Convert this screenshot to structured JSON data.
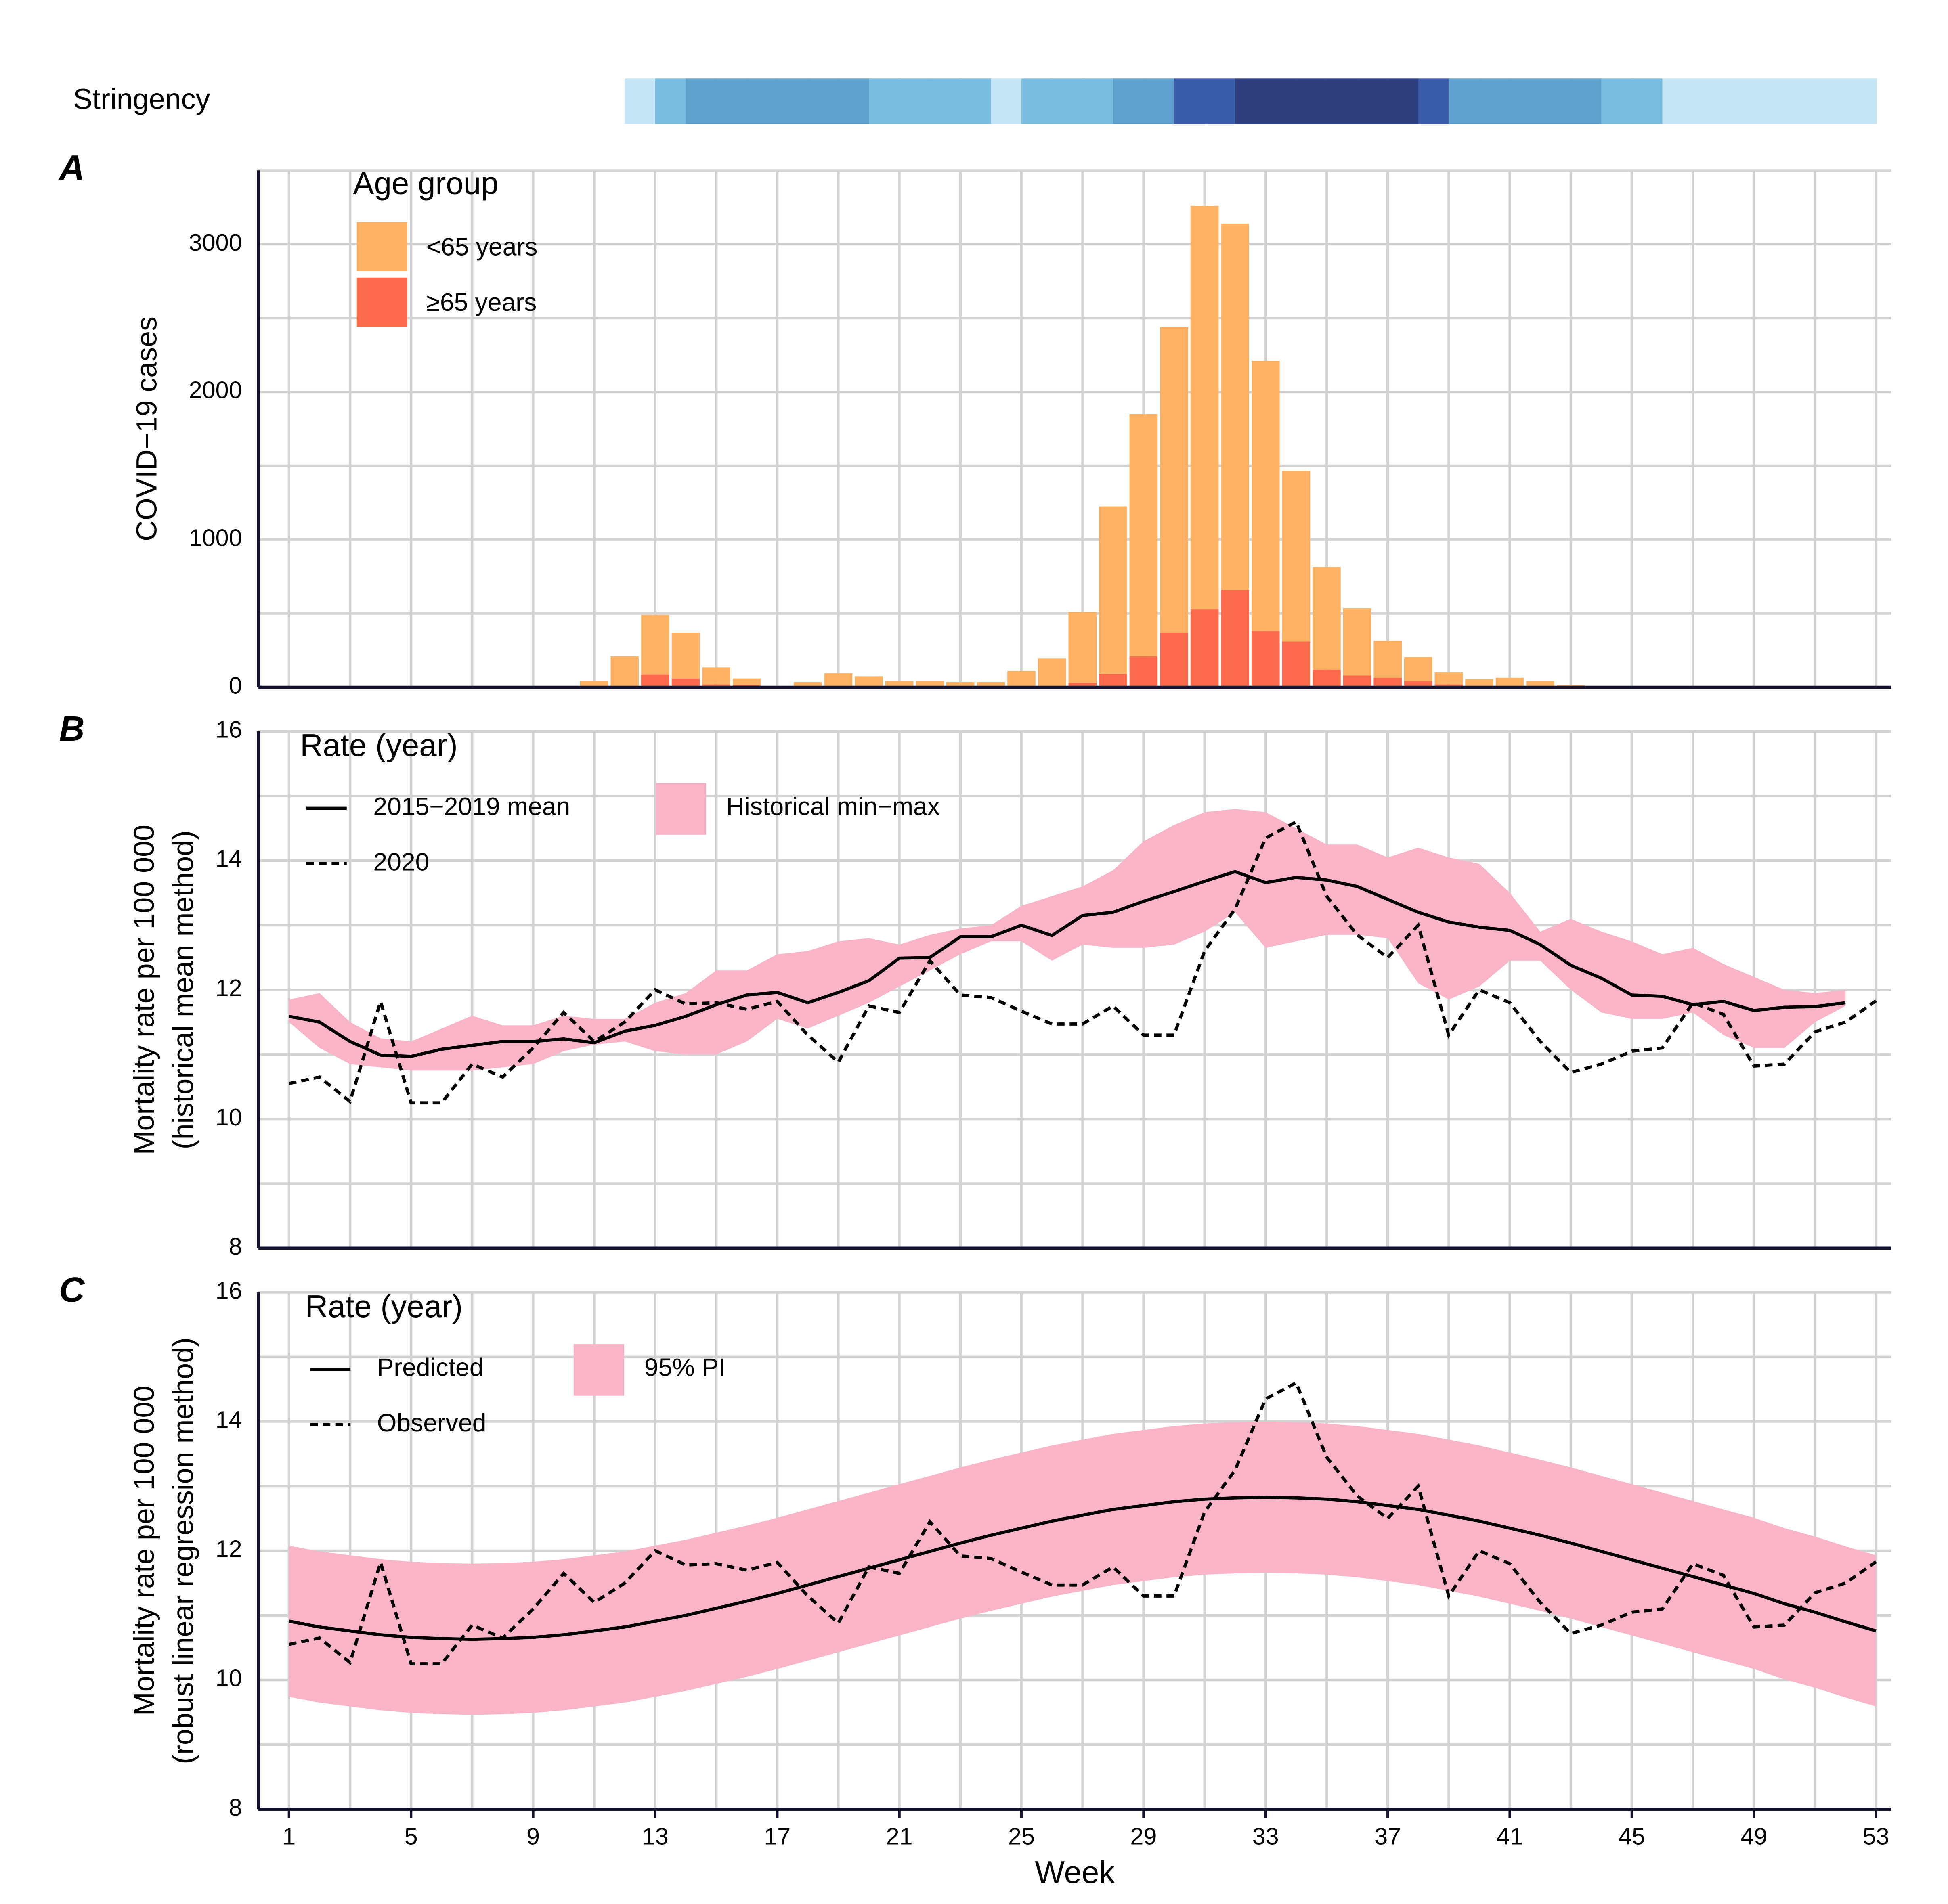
{
  "chart_data": [
    {
      "type": "strip",
      "label": "Stringency",
      "x": [
        12,
        13,
        14,
        15,
        16,
        17,
        18,
        19,
        20,
        21,
        22,
        23,
        24,
        25,
        26,
        27,
        28,
        29,
        30,
        31,
        32,
        33,
        34,
        35,
        36,
        37,
        38,
        39,
        40,
        41,
        42,
        43,
        44,
        45,
        46,
        47,
        48,
        49,
        50,
        51,
        52
      ],
      "colors": [
        "#c3e5f6",
        "#7bbde0",
        "#5fa1cc",
        "#5fa1cc",
        "#5fa1cc",
        "#5fa1cc",
        "#5fa1cc",
        "#5fa1cc",
        "#7bbde0",
        "#7bbde0",
        "#7bbde0",
        "#7bbde0",
        "#c3e5f6",
        "#7bbde0",
        "#7bbde0",
        "#7bbde0",
        "#5fa1cc",
        "#5fa1cc",
        "#3b5ca8",
        "#3b5ca8",
        "#2c3e7d",
        "#2c3e7d",
        "#2c3e7d",
        "#2c3e7d",
        "#2c3e7d",
        "#2c3e7d",
        "#3b5ca8",
        "#5fa1cc",
        "#5fa1cc",
        "#5fa1cc",
        "#5fa1cc",
        "#5fa1cc",
        "#7bbde0",
        "#7bbde0",
        "#c3e5f6",
        "#c3e5f6",
        "#c3e5f6",
        "#c3e5f6",
        "#c3e5f6",
        "#c3e5f6",
        "#c3e5f6"
      ],
      "xlim": [
        0,
        53.5
      ]
    },
    {
      "type": "stacked-bar",
      "panel": "A",
      "ylabel": "COVID−19 cases",
      "legend_title": "Age group",
      "x": [
        1,
        2,
        3,
        4,
        5,
        6,
        7,
        8,
        9,
        10,
        11,
        12,
        13,
        14,
        15,
        16,
        17,
        18,
        19,
        20,
        21,
        22,
        23,
        24,
        25,
        26,
        27,
        28,
        29,
        30,
        31,
        32,
        33,
        34,
        35,
        36,
        37,
        38,
        39,
        40,
        41,
        42,
        43,
        44,
        45,
        46,
        47,
        48,
        49,
        50,
        51,
        52,
        53
      ],
      "series": [
        {
          "name": "<65 years",
          "color": "#fdb163",
          "values": [
            0,
            0,
            0,
            0,
            0,
            0,
            0,
            0,
            0,
            0,
            40,
            200,
            405,
            310,
            115,
            45,
            10,
            35,
            90,
            70,
            40,
            40,
            35,
            35,
            105,
            190,
            480,
            1135,
            1640,
            2070,
            2730,
            2480,
            1830,
            1155,
            695,
            455,
            250,
            165,
            80,
            50,
            60,
            40,
            15,
            5,
            0,
            0,
            0,
            0,
            0,
            0,
            0,
            0,
            0
          ]
        },
        {
          "name": "≥65 years",
          "color": "#fb6b4b",
          "values": [
            0,
            0,
            0,
            0,
            0,
            0,
            0,
            0,
            0,
            0,
            0,
            10,
            85,
            60,
            20,
            15,
            0,
            0,
            5,
            5,
            0,
            0,
            0,
            0,
            5,
            5,
            30,
            90,
            210,
            370,
            530,
            660,
            380,
            310,
            120,
            80,
            65,
            40,
            20,
            5,
            5,
            0,
            0,
            0,
            0,
            0,
            0,
            0,
            0,
            0,
            0,
            0,
            0
          ]
        }
      ],
      "xlim": [
        0,
        53.5
      ],
      "ylim": [
        0,
        3500
      ],
      "yticks": [
        0,
        1000,
        2000,
        3000
      ],
      "grid": true
    },
    {
      "type": "line-band",
      "panel": "B",
      "ylabel": [
        "Mortality rate per 100 000",
        "(historical mean method)"
      ],
      "legend_title": "Rate (year)",
      "x": [
        1,
        2,
        3,
        4,
        5,
        6,
        7,
        8,
        9,
        10,
        11,
        12,
        13,
        14,
        15,
        16,
        17,
        18,
        19,
        20,
        21,
        22,
        23,
        24,
        25,
        26,
        27,
        28,
        29,
        30,
        31,
        32,
        33,
        34,
        35,
        36,
        37,
        38,
        39,
        40,
        41,
        42,
        43,
        44,
        45,
        46,
        47,
        48,
        49,
        50,
        51,
        52,
        53
      ],
      "band": {
        "name": "Historical min−max",
        "color": "#f9b4c7",
        "lower": [
          11.5,
          11.1,
          10.85,
          10.8,
          10.75,
          10.75,
          10.75,
          10.8,
          10.85,
          11.05,
          11.15,
          11.2,
          11.05,
          11.0,
          11.0,
          11.2,
          11.55,
          11.4,
          11.6,
          11.8,
          12.05,
          12.3,
          12.55,
          12.75,
          12.75,
          12.45,
          12.7,
          12.65,
          12.65,
          12.7,
          12.9,
          13.2,
          12.65,
          12.75,
          12.85,
          12.85,
          12.8,
          12.1,
          11.85,
          12.05,
          12.45,
          12.45,
          12.0,
          11.65,
          11.55,
          11.55,
          11.65,
          11.3,
          11.1,
          11.1,
          11.5,
          11.75,
          null
        ],
        "upper": [
          11.85,
          11.95,
          11.5,
          11.25,
          11.2,
          11.4,
          11.6,
          11.45,
          11.45,
          11.6,
          11.55,
          11.55,
          11.8,
          11.95,
          12.3,
          12.3,
          12.55,
          12.6,
          12.75,
          12.8,
          12.7,
          12.85,
          12.95,
          13.0,
          13.3,
          13.45,
          13.6,
          13.85,
          14.3,
          14.55,
          14.75,
          14.8,
          14.75,
          14.5,
          14.25,
          14.25,
          14.05,
          14.2,
          14.05,
          13.95,
          13.5,
          12.9,
          13.1,
          12.9,
          12.75,
          12.55,
          12.65,
          12.4,
          12.2,
          12.0,
          11.95,
          12.0,
          null
        ]
      },
      "series": [
        {
          "name": "2015−2019 mean",
          "color": "#000000",
          "dash": false,
          "values": [
            11.59,
            11.5,
            11.2,
            10.99,
            10.97,
            11.08,
            11.14,
            11.2,
            11.2,
            11.24,
            11.18,
            11.36,
            11.45,
            11.59,
            11.77,
            11.92,
            11.96,
            11.8,
            11.96,
            12.14,
            12.49,
            12.5,
            12.82,
            12.82,
            13.0,
            12.84,
            13.15,
            13.2,
            13.37,
            13.52,
            13.68,
            13.83,
            13.66,
            13.74,
            13.7,
            13.6,
            13.4,
            13.2,
            13.05,
            12.97,
            12.92,
            12.7,
            12.38,
            12.18,
            11.92,
            11.9,
            11.77,
            11.82,
            11.68,
            11.73,
            11.74,
            11.8,
            null
          ]
        },
        {
          "name": "2020",
          "color": "#000000",
          "dash": true,
          "values": [
            10.55,
            10.65,
            10.27,
            11.82,
            10.25,
            10.25,
            10.85,
            10.65,
            11.1,
            11.65,
            11.2,
            11.5,
            12.0,
            11.78,
            11.8,
            11.7,
            11.82,
            11.3,
            10.88,
            11.75,
            11.65,
            12.45,
            11.92,
            11.88,
            11.67,
            11.47,
            11.47,
            11.75,
            11.3,
            11.3,
            12.6,
            13.25,
            14.35,
            14.6,
            13.45,
            12.85,
            12.5,
            13.0,
            11.3,
            12.0,
            11.8,
            11.2,
            10.72,
            10.85,
            11.05,
            11.1,
            11.8,
            11.62,
            10.82,
            10.85,
            11.35,
            11.5,
            11.83
          ]
        }
      ],
      "xlim": [
        0,
        53.5
      ],
      "ylim": [
        8,
        16
      ],
      "yticks": [
        8,
        10,
        12,
        14,
        16
      ],
      "grid": true
    },
    {
      "type": "line-band",
      "panel": "C",
      "ylabel": [
        "Mortality rate per 100 000",
        "(robust linear regression method)"
      ],
      "legend_title": "Rate (year)",
      "xlabel": "Week",
      "x": [
        1,
        2,
        3,
        4,
        5,
        6,
        7,
        8,
        9,
        10,
        11,
        12,
        13,
        14,
        15,
        16,
        17,
        18,
        19,
        20,
        21,
        22,
        23,
        24,
        25,
        26,
        27,
        28,
        29,
        30,
        31,
        32,
        33,
        34,
        35,
        36,
        37,
        38,
        39,
        40,
        41,
        42,
        43,
        44,
        45,
        46,
        47,
        48,
        49,
        50,
        51,
        52,
        53
      ],
      "band": {
        "name": "95% PI",
        "color": "#f9b4c7",
        "lower": [
          9.74,
          9.65,
          9.59,
          9.53,
          9.49,
          9.47,
          9.46,
          9.47,
          9.49,
          9.53,
          9.59,
          9.65,
          9.74,
          9.83,
          9.94,
          10.05,
          10.17,
          10.3,
          10.43,
          10.56,
          10.69,
          10.82,
          10.95,
          11.07,
          11.18,
          11.29,
          11.38,
          11.47,
          11.53,
          11.59,
          11.63,
          11.65,
          11.66,
          11.65,
          11.63,
          11.59,
          11.53,
          11.47,
          11.38,
          11.29,
          11.18,
          11.07,
          10.95,
          10.82,
          10.69,
          10.56,
          10.43,
          10.3,
          10.17,
          10.01,
          9.88,
          9.73,
          9.59
        ],
        "upper": [
          12.08,
          11.99,
          11.93,
          11.87,
          11.83,
          11.81,
          11.8,
          11.81,
          11.83,
          11.87,
          11.93,
          11.99,
          12.08,
          12.17,
          12.28,
          12.39,
          12.51,
          12.64,
          12.77,
          12.9,
          13.03,
          13.16,
          13.29,
          13.41,
          13.52,
          13.63,
          13.72,
          13.81,
          13.87,
          13.93,
          13.97,
          13.99,
          14.0,
          13.99,
          13.97,
          13.93,
          13.87,
          13.81,
          13.72,
          13.63,
          13.52,
          13.41,
          13.29,
          13.16,
          13.03,
          12.9,
          12.77,
          12.64,
          12.51,
          12.35,
          12.22,
          12.07,
          11.93
        ]
      },
      "series": [
        {
          "name": "Predicted",
          "color": "#000000",
          "dash": false,
          "values": [
            10.91,
            10.82,
            10.76,
            10.7,
            10.66,
            10.64,
            10.63,
            10.64,
            10.66,
            10.7,
            10.76,
            10.82,
            10.91,
            11.0,
            11.11,
            11.22,
            11.34,
            11.47,
            11.6,
            11.73,
            11.86,
            11.99,
            12.12,
            12.24,
            12.35,
            12.46,
            12.55,
            12.64,
            12.7,
            12.76,
            12.8,
            12.82,
            12.83,
            12.82,
            12.8,
            12.76,
            12.7,
            12.64,
            12.55,
            12.46,
            12.35,
            12.24,
            12.12,
            11.99,
            11.86,
            11.73,
            11.6,
            11.47,
            11.34,
            11.18,
            11.05,
            10.9,
            10.76
          ]
        },
        {
          "name": "Observed",
          "color": "#000000",
          "dash": true,
          "values": [
            10.55,
            10.65,
            10.27,
            11.82,
            10.25,
            10.25,
            10.85,
            10.65,
            11.1,
            11.65,
            11.2,
            11.5,
            12.0,
            11.78,
            11.8,
            11.7,
            11.82,
            11.3,
            10.88,
            11.75,
            11.65,
            12.45,
            11.92,
            11.88,
            11.67,
            11.47,
            11.47,
            11.75,
            11.3,
            11.3,
            12.6,
            13.25,
            14.35,
            14.6,
            13.45,
            12.85,
            12.5,
            13.0,
            11.3,
            12.0,
            11.8,
            11.2,
            10.72,
            10.85,
            11.05,
            11.1,
            11.8,
            11.62,
            10.82,
            10.85,
            11.35,
            11.5,
            11.83
          ]
        }
      ],
      "xlim": [
        0,
        53.5
      ],
      "ylim": [
        8,
        16
      ],
      "yticks": [
        8,
        10,
        12,
        14,
        16
      ],
      "xticks": [
        1,
        5,
        9,
        13,
        17,
        21,
        25,
        29,
        33,
        37,
        41,
        45,
        49,
        53
      ],
      "grid": true
    }
  ]
}
